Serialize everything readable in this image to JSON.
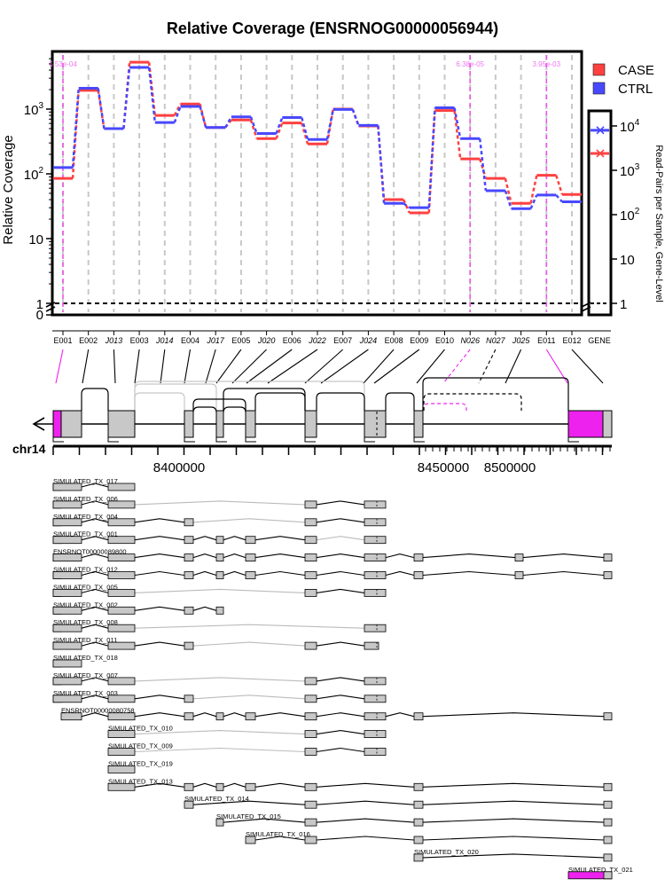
{
  "chart_data": {
    "type": "line",
    "title": "Relative Coverage (ENSRNOG00000056944)",
    "ylabel": "Relative Coverage",
    "ylabel_right": "Read-Pairs per Sample, Gene-Level",
    "y_scale": "log",
    "y_ticks": [
      "0",
      "1",
      "10",
      "10^2",
      "10^3"
    ],
    "y_ticks_right": [
      "1",
      "10",
      "10^2",
      "10^3",
      "10^4"
    ],
    "chromosome": "chr14",
    "genome_ticks": [
      "8400000",
      "8450000",
      "8500000"
    ],
    "legend": {
      "position": "top-right",
      "entries": [
        "CASE",
        "CTRL"
      ]
    },
    "colors": {
      "CASE": "#ff4040",
      "CTRL": "#4848ff",
      "novel": "#ee22ee",
      "exon": "#c8c8c8"
    },
    "features": [
      "E001",
      "E002",
      "J013",
      "E003",
      "J014",
      "E004",
      "J017",
      "E005",
      "J020",
      "E006",
      "J022",
      "E007",
      "J024",
      "E008",
      "E009",
      "E010",
      "N026",
      "N027",
      "J025",
      "E011",
      "E012"
    ],
    "series": [
      {
        "name": "CASE",
        "values": [
          85,
          1950,
          500,
          5300,
          800,
          1200,
          520,
          680,
          350,
          610,
          290,
          1000,
          550,
          40,
          25,
          950,
          170,
          85,
          35,
          95,
          48
        ]
      },
      {
        "name": "CTRL",
        "values": [
          125,
          2100,
          500,
          4400,
          620,
          1100,
          520,
          760,
          420,
          740,
          340,
          990,
          560,
          35,
          30,
          1050,
          350,
          55,
          29,
          47,
          37
        ]
      }
    ],
    "gene_level": {
      "label": "GENE",
      "CASE": 2400,
      "CTRL": 8000
    },
    "pvalue_annotations": [
      {
        "feature": "E001",
        "text": "6.53e-04"
      },
      {
        "feature": "N026",
        "text": "6.38e-05"
      },
      {
        "feature": "E011",
        "text": "3.95e-03"
      }
    ],
    "transcripts": [
      "SIMULATED_TX_017",
      "SIMULATED_TX_006",
      "SIMULATED_TX_004",
      "SIMULATED_TX_001",
      "ENSRNOT00000089800",
      "SIMULATED_TX_012",
      "SIMULATED_TX_005",
      "SIMULATED_TX_002",
      "SIMULATED_TX_008",
      "SIMULATED_TX_011",
      "SIMULATED_TX_018",
      "SIMULATED_TX_007",
      "SIMULATED_TX_003",
      "ENSRNOT00000080758",
      "SIMULATED_TX_010",
      "SIMULATED_TX_009",
      "SIMULATED_TX_019",
      "SIMULATED_TX_013",
      "SIMULATED_TX_014",
      "SIMULATED_TX_015",
      "SIMULATED_TX_016",
      "SIMULATED_TX_020",
      "SIMULATED_TX_021"
    ]
  }
}
